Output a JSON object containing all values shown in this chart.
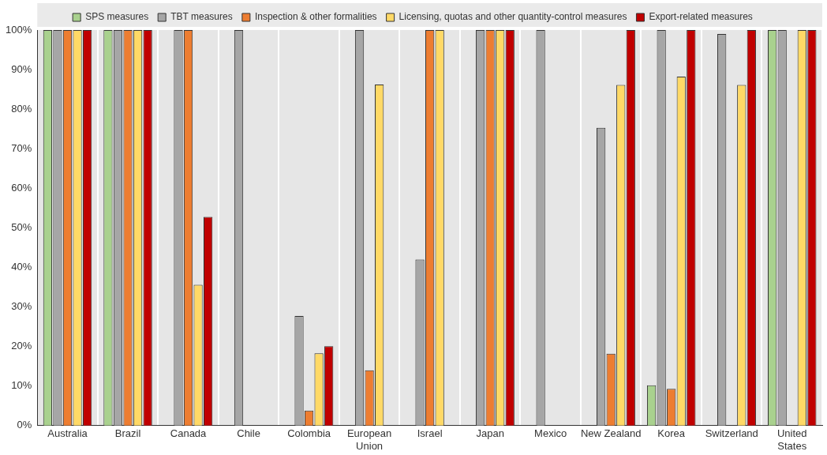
{
  "chart_data": {
    "type": "bar",
    "categories": [
      "Australia",
      "Brazil",
      "Canada",
      "Chile",
      "Colombia",
      "European Union",
      "Israel",
      "Japan",
      "Mexico",
      "New Zealand",
      "Korea",
      "Switzerland",
      "United States"
    ],
    "series": [
      {
        "name": "SPS measures",
        "color": "#a9d18e",
        "values": [
          100,
          100,
          0,
          0,
          0,
          0,
          0,
          0,
          0,
          0,
          10.2,
          0,
          100
        ]
      },
      {
        "name": "TBT measures",
        "color": "#a6a6a6",
        "values": [
          100,
          100,
          100,
          100,
          27.7,
          100,
          42,
          100,
          100,
          75.3,
          100,
          99,
          100
        ]
      },
      {
        "name": "Inspection & other formalities",
        "color": "#ed7d31",
        "values": [
          100,
          100,
          100,
          0,
          3.8,
          14,
          100,
          100,
          0,
          18.2,
          9.3,
          0,
          0
        ]
      },
      {
        "name": "Licensing, quotas and other quantity-control measures",
        "color": "#ffd966",
        "values": [
          100,
          100,
          35.6,
          0,
          18.3,
          86.2,
          100,
          100,
          0,
          86.1,
          88.2,
          86.1,
          100
        ]
      },
      {
        "name": "Export-related measures",
        "color": "#c00000",
        "values": [
          100,
          100,
          52.8,
          0,
          20.1,
          0,
          0,
          100,
          0,
          100,
          100,
          100,
          100
        ]
      }
    ],
    "ylim": [
      0,
      100
    ],
    "yticks": [
      {
        "value": 0,
        "label": "0%"
      },
      {
        "value": 10,
        "label": "10%"
      },
      {
        "value": 20,
        "label": "20%"
      },
      {
        "value": 30,
        "label": "30%"
      },
      {
        "value": 40,
        "label": "40%"
      },
      {
        "value": 50,
        "label": "50%"
      },
      {
        "value": 60,
        "label": "60%"
      },
      {
        "value": 70,
        "label": "70%"
      },
      {
        "value": 80,
        "label": "80%"
      },
      {
        "value": 90,
        "label": "90%"
      },
      {
        "value": 100,
        "label": "100%"
      }
    ],
    "grid": "x",
    "legend": "top"
  }
}
